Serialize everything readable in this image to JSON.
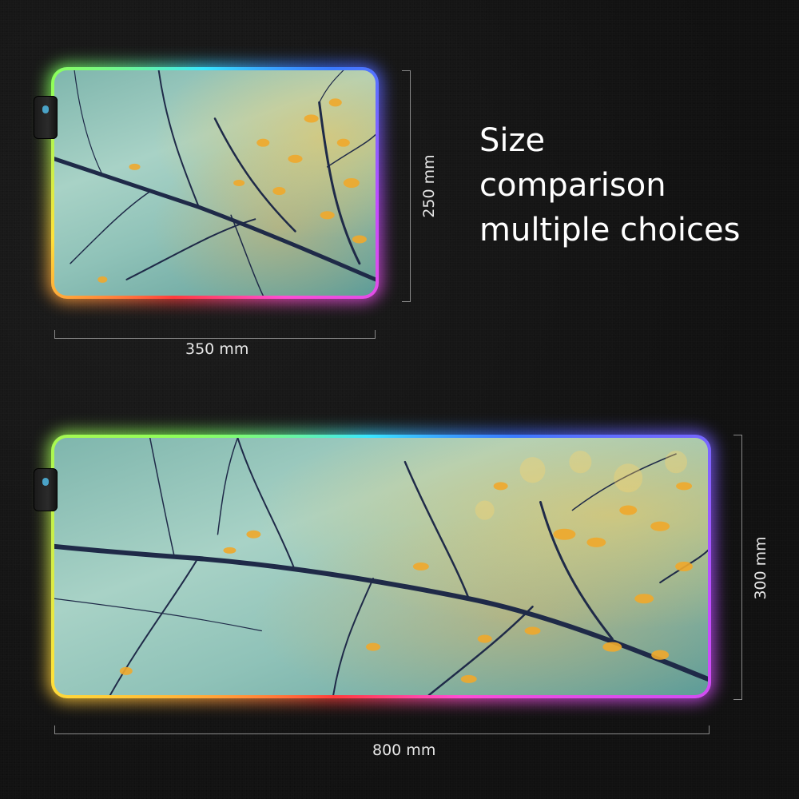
{
  "headline": {
    "lines": [
      "Size",
      "comparison",
      "multiple choices"
    ]
  },
  "small_pad": {
    "width_label": "350 mm",
    "height_label": "250 mm"
  },
  "large_pad": {
    "width_label": "800 mm",
    "height_label": "300 mm"
  },
  "colors": {
    "background": "#141414",
    "text": "#ffffff",
    "dimension_line": "#8a8a8a",
    "connector_led": "#4aa3c7"
  },
  "icons": {
    "connector": "usb-connector-icon"
  }
}
